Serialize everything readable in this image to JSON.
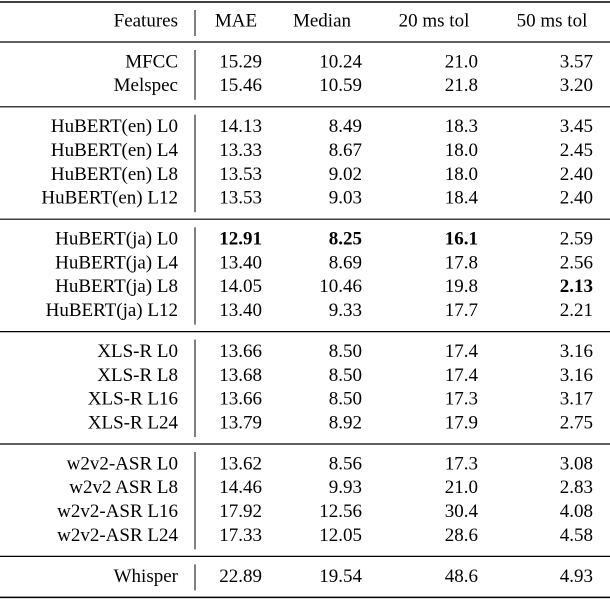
{
  "table": {
    "header": [
      "Features",
      "MAE",
      "Median",
      "20 ms tol",
      "50 ms tol"
    ],
    "groups": [
      [
        [
          "MFCC",
          "15.29",
          "10.24",
          "21.0",
          "3.57"
        ],
        [
          "Melspec",
          "15.46",
          "10.59",
          "21.8",
          "3.20"
        ]
      ],
      [
        [
          "HuBERT(en) L0",
          "14.13",
          "8.49",
          "18.3",
          "3.45"
        ],
        [
          "HuBERT(en) L4",
          "13.33",
          "8.67",
          "18.0",
          "2.45"
        ],
        [
          "HuBERT(en) L8",
          "13.53",
          "9.02",
          "18.0",
          "2.40"
        ],
        [
          "HuBERT(en) L12",
          "13.53",
          "9.03",
          "18.4",
          "2.40"
        ]
      ],
      [
        [
          "HuBERT(ja) L0",
          "12.91",
          "8.25",
          "16.1",
          "2.59"
        ],
        [
          "HuBERT(ja) L4",
          "13.40",
          "8.69",
          "17.8",
          "2.56"
        ],
        [
          "HuBERT(ja) L8",
          "14.05",
          "10.46",
          "19.8",
          "2.13"
        ],
        [
          "HuBERT(ja) L12",
          "13.40",
          "9.33",
          "17.7",
          "2.21"
        ]
      ],
      [
        [
          "XLS-R L0",
          "13.66",
          "8.50",
          "17.4",
          "3.16"
        ],
        [
          "XLS-R L8",
          "13.68",
          "8.50",
          "17.4",
          "3.16"
        ],
        [
          "XLS-R L16",
          "13.66",
          "8.50",
          "17.3",
          "3.17"
        ],
        [
          "XLS-R L24",
          "13.79",
          "8.92",
          "17.9",
          "2.75"
        ]
      ],
      [
        [
          "w2v2-ASR L0",
          "13.62",
          "8.56",
          "17.3",
          "3.08"
        ],
        [
          "w2v2 ASR L8",
          "14.46",
          "9.93",
          "21.0",
          "2.83"
        ],
        [
          "w2v2-ASR L16",
          "17.92",
          "12.56",
          "30.4",
          "4.08"
        ],
        [
          "w2v2-ASR L24",
          "17.33",
          "12.05",
          "28.6",
          "4.58"
        ]
      ],
      [
        [
          "Whisper",
          "22.89",
          "19.54",
          "48.6",
          "4.93"
        ]
      ]
    ]
  }
}
